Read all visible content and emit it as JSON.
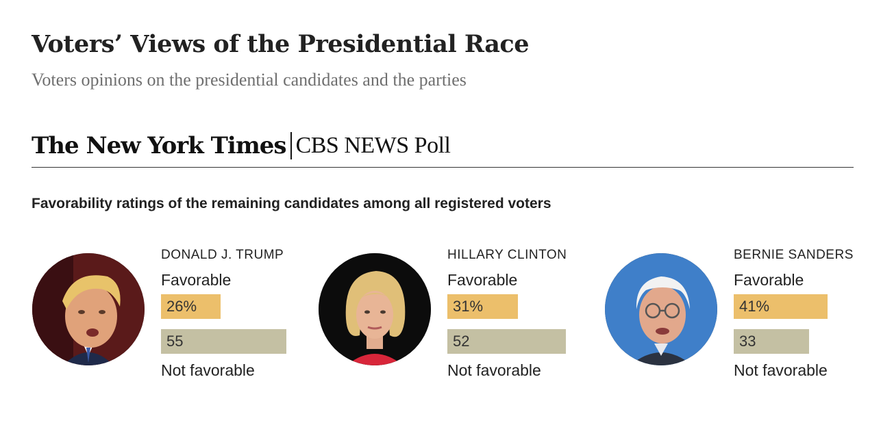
{
  "header": {
    "title": "Voters’ Views of the Presidential Race",
    "subtitle": "Voters opinions on the presidential candidates and the parties"
  },
  "brand": {
    "newspaper": "The New York Times",
    "poll": "CBS NEWS Poll"
  },
  "chart_data": {
    "type": "bar",
    "title": "Favorability ratings of the remaining candidates among all registered voters",
    "xlim": [
      0,
      100
    ],
    "categories": [
      "DONALD J. TRUMP",
      "HILLARY CLINTON",
      "BERNIE SANDERS"
    ],
    "series_labels": {
      "favorable": "Favorable",
      "unfavorable": "Not favorable"
    },
    "colors": {
      "favorable": "#ecbf6b",
      "unfavorable": "#c4c0a3"
    },
    "candidates": [
      {
        "name": "DONALD J. TRUMP",
        "favorable": 26,
        "favorable_label": "26%",
        "unfavorable": 55,
        "unfavorable_label": "55",
        "photo_icon": "trump-photo"
      },
      {
        "name": "HILLARY CLINTON",
        "favorable": 31,
        "favorable_label": "31%",
        "unfavorable": 52,
        "unfavorable_label": "52",
        "photo_icon": "clinton-photo"
      },
      {
        "name": "BERNIE SANDERS",
        "favorable": 41,
        "favorable_label": "41%",
        "unfavorable": 33,
        "unfavorable_label": "33",
        "photo_icon": "sanders-photo"
      }
    ]
  }
}
